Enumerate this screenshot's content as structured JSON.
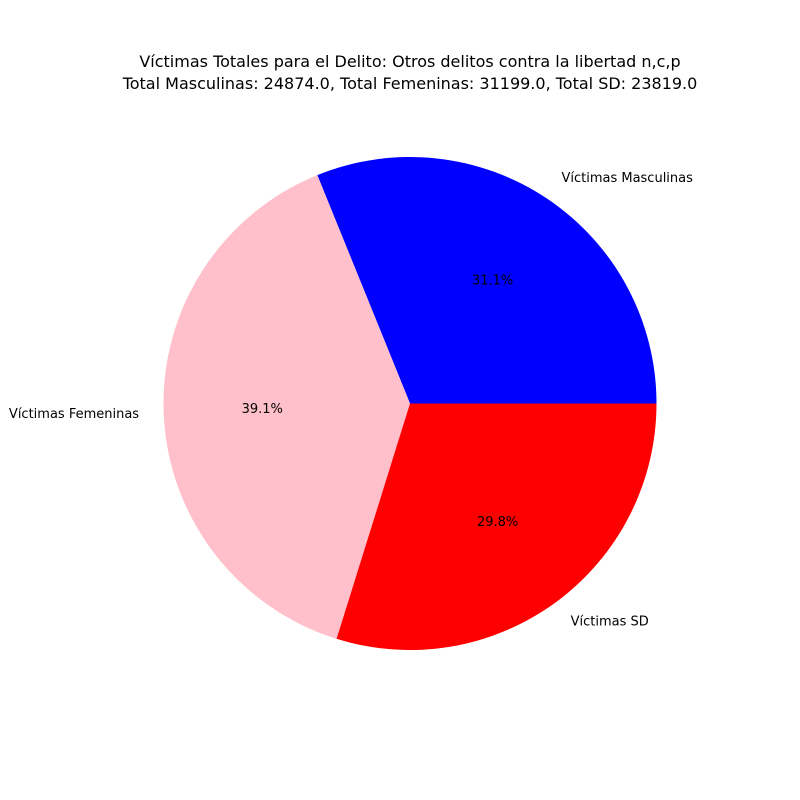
{
  "chart_data": {
    "type": "pie",
    "title": "Víctimas Totales para el Delito: Otros delitos contra la libertad n,c,p",
    "subtitle": "Total Masculinas: 24874.0, Total Femeninas: 31199.0, Total SD: 23819.0",
    "slices": [
      {
        "label": "Víctimas Masculinas",
        "value": 24874.0,
        "pct_label": "31.1%",
        "color": "#0000ff"
      },
      {
        "label": "Víctimas Femeninas",
        "value": 31199.0,
        "pct_label": "39.1%",
        "color": "#ffc0cb"
      },
      {
        "label": "Víctimas SD",
        "value": 23819.0,
        "pct_label": "29.8%",
        "color": "#ff0000"
      }
    ],
    "start_angle_deg": 0,
    "direction": "counterclockwise"
  }
}
